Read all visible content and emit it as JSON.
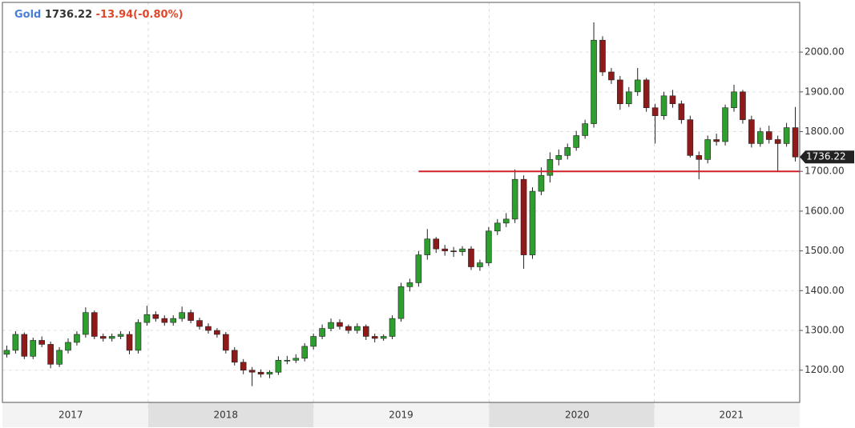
{
  "chart_data": {
    "type": "candlestick",
    "header": {
      "name": "Gold",
      "last": "1736.22",
      "change": "-13.94(-0.80%)"
    },
    "last_price": 1736.22,
    "open": [
      1240,
      1250,
      1290,
      1235,
      1275,
      1265,
      1215,
      1250,
      1270,
      1290,
      1345,
      1285,
      1280,
      1285,
      1290,
      1250,
      1320,
      1340,
      1330,
      1320,
      1330,
      1345,
      1325,
      1310,
      1300,
      1290,
      1250,
      1220,
      1200,
      1195,
      1190,
      1195,
      1225,
      1225,
      1230,
      1260,
      1285,
      1305,
      1320,
      1310,
      1300,
      1310,
      1285,
      1280,
      1285,
      1330,
      1410,
      1420,
      1490,
      1530,
      1505,
      1500,
      1498,
      1505,
      1460,
      1470,
      1550,
      1570,
      1580,
      1680,
      1490,
      1650,
      1690,
      1730,
      1740,
      1760,
      1790,
      1820,
      2030,
      1950,
      1930,
      1870,
      1900,
      1930,
      1860,
      1840,
      1890,
      1870,
      1830,
      1740,
      1730,
      1780,
      1775,
      1860,
      1900,
      1830,
      1770,
      1800,
      1780,
      1770,
      1810
    ],
    "high": [
      1262,
      1298,
      1295,
      1282,
      1285,
      1272,
      1258,
      1280,
      1298,
      1358,
      1350,
      1292,
      1292,
      1298,
      1298,
      1328,
      1362,
      1348,
      1338,
      1338,
      1360,
      1352,
      1332,
      1318,
      1306,
      1296,
      1258,
      1228,
      1208,
      1202,
      1200,
      1235,
      1236,
      1240,
      1268,
      1292,
      1315,
      1330,
      1328,
      1315,
      1318,
      1315,
      1292,
      1290,
      1338,
      1420,
      1430,
      1500,
      1555,
      1535,
      1515,
      1510,
      1512,
      1512,
      1478,
      1560,
      1580,
      1595,
      1705,
      1690,
      1660,
      1710,
      1748,
      1755,
      1770,
      1802,
      1830,
      2075,
      2040,
      1960,
      1940,
      1912,
      1960,
      1935,
      1870,
      1900,
      1905,
      1878,
      1840,
      1750,
      1790,
      1795,
      1868,
      1918,
      1905,
      1840,
      1810,
      1815,
      1790,
      1822,
      1862
    ],
    "low": [
      1232,
      1242,
      1228,
      1228,
      1258,
      1205,
      1208,
      1242,
      1262,
      1282,
      1278,
      1272,
      1272,
      1278,
      1240,
      1242,
      1312,
      1322,
      1312,
      1312,
      1322,
      1318,
      1302,
      1292,
      1282,
      1242,
      1212,
      1190,
      1160,
      1182,
      1180,
      1188,
      1215,
      1218,
      1222,
      1252,
      1278,
      1298,
      1302,
      1292,
      1292,
      1276,
      1270,
      1274,
      1278,
      1322,
      1398,
      1410,
      1478,
      1495,
      1488,
      1485,
      1488,
      1452,
      1450,
      1462,
      1540,
      1560,
      1570,
      1455,
      1480,
      1640,
      1672,
      1715,
      1730,
      1752,
      1782,
      1810,
      1940,
      1920,
      1855,
      1862,
      1890,
      1850,
      1770,
      1830,
      1860,
      1820,
      1735,
      1680,
      1720,
      1765,
      1765,
      1850,
      1820,
      1760,
      1762,
      1770,
      1700,
      1762,
      1725
    ],
    "close": [
      1250,
      1290,
      1235,
      1275,
      1265,
      1215,
      1250,
      1270,
      1290,
      1345,
      1285,
      1280,
      1285,
      1290,
      1250,
      1320,
      1340,
      1330,
      1320,
      1330,
      1345,
      1325,
      1310,
      1300,
      1290,
      1250,
      1220,
      1200,
      1195,
      1190,
      1195,
      1225,
      1225,
      1230,
      1260,
      1285,
      1305,
      1320,
      1310,
      1300,
      1310,
      1285,
      1280,
      1285,
      1330,
      1410,
      1420,
      1490,
      1530,
      1505,
      1500,
      1498,
      1505,
      1460,
      1470,
      1550,
      1570,
      1580,
      1680,
      1490,
      1650,
      1690,
      1730,
      1740,
      1760,
      1790,
      1820,
      2030,
      1950,
      1930,
      1870,
      1900,
      1930,
      1860,
      1840,
      1890,
      1870,
      1830,
      1740,
      1730,
      1780,
      1775,
      1860,
      1900,
      1830,
      1770,
      1800,
      1780,
      1770,
      1810,
      1736.22
    ],
    "up_color": "#2e9e2e",
    "down_color": "#8e1a1a",
    "xlim": [
      0,
      91
    ],
    "xticks": [
      {
        "value": 7.8,
        "label": "2017"
      },
      {
        "value": 25.5,
        "label": "2018"
      },
      {
        "value": 45.5,
        "label": "2019"
      },
      {
        "value": 65.6,
        "label": "2020"
      },
      {
        "value": 83.2,
        "label": "2021"
      }
    ],
    "ylim": [
      1119,
      2125
    ],
    "yticks": [
      {
        "value": 1200,
        "label": "1200.00"
      },
      {
        "value": 1300,
        "label": "1300.00"
      },
      {
        "value": 1400,
        "label": "1400.00"
      },
      {
        "value": 1500,
        "label": "1500.00"
      },
      {
        "value": 1600,
        "label": "1600.00"
      },
      {
        "value": 1700,
        "label": "1700.00"
      },
      {
        "value": 1800,
        "label": "1800.00"
      },
      {
        "value": 1900,
        "label": "1900.00"
      },
      {
        "value": 2000,
        "label": "2000.00"
      }
    ],
    "grid": true,
    "support_line": {
      "value": 1700,
      "start": 47.5,
      "color": "#d0202a"
    }
  }
}
